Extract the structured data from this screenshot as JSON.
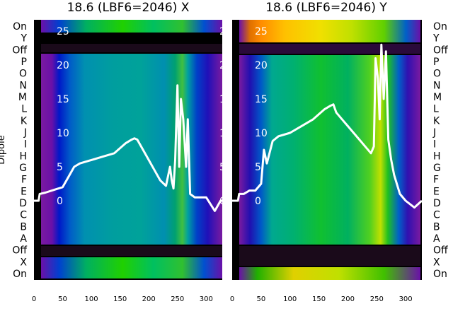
{
  "chart_data": [
    {
      "type": "heatmap",
      "title": "18.6 (LBF6=2046) X",
      "ylabel": "Dipole",
      "y_categories": [
        "On",
        "X",
        "Off",
        "A",
        "B",
        "C",
        "D",
        "E",
        "F",
        "G",
        "H",
        "I",
        "J",
        "K",
        "L",
        "M",
        "N",
        "O",
        "P",
        "Off",
        "Y",
        "On"
      ],
      "x_ticks": [
        0,
        50,
        100,
        150,
        200,
        250,
        300
      ],
      "xlim": [
        0,
        328
      ],
      "overlay_ticks": [
        0,
        5,
        10,
        15,
        20,
        25
      ],
      "overlay_ylim": [
        -3,
        27
      ],
      "overlay_trace": {
        "x": [
          0,
          8,
          10,
          20,
          35,
          50,
          60,
          70,
          80,
          100,
          120,
          140,
          160,
          170,
          175,
          180,
          190,
          200,
          210,
          220,
          230,
          237,
          240,
          243,
          246,
          250,
          253,
          256,
          260,
          265,
          268,
          272,
          280,
          290,
          300,
          315,
          325,
          328
        ],
        "y": [
          0,
          0,
          1,
          1.2,
          1.6,
          2,
          3.5,
          5,
          5.5,
          6,
          6.5,
          7,
          8.5,
          9,
          9.2,
          9,
          7.5,
          6,
          4.5,
          3,
          2.2,
          5,
          3,
          1.8,
          6,
          17,
          5,
          15,
          12,
          5,
          12,
          1,
          0.5,
          0.5,
          0.5,
          -1.5,
          0,
          0
        ]
      }
    },
    {
      "type": "heatmap",
      "title": "18.6 (LBF6=2046) Y",
      "ylabel": "",
      "y_categories": [
        "On",
        "X",
        "Off",
        "A",
        "B",
        "C",
        "D",
        "E",
        "F",
        "G",
        "H",
        "I",
        "J",
        "K",
        "L",
        "M",
        "N",
        "O",
        "P",
        "Off",
        "Y",
        "On"
      ],
      "x_ticks": [
        0,
        50,
        100,
        150,
        200,
        250,
        300
      ],
      "xlim": [
        0,
        328
      ],
      "overlay_ticks": [
        0,
        5,
        10,
        15,
        20,
        25
      ],
      "overlay_ylim": [
        -3,
        27
      ],
      "overlay_trace": {
        "x": [
          0,
          10,
          12,
          20,
          30,
          40,
          50,
          55,
          60,
          70,
          80,
          100,
          120,
          140,
          160,
          170,
          175,
          180,
          190,
          200,
          210,
          220,
          230,
          240,
          245,
          248,
          252,
          255,
          258,
          262,
          266,
          270,
          275,
          280,
          290,
          300,
          315,
          328
        ],
        "y": [
          0,
          0,
          1,
          1,
          1.5,
          1.5,
          2.5,
          7.5,
          5.5,
          8.8,
          9.5,
          10,
          11,
          12,
          13.5,
          14,
          14.2,
          13,
          12,
          11,
          10,
          9,
          8,
          7,
          8,
          21,
          18,
          12,
          23,
          15,
          22,
          9,
          6,
          3.8,
          1,
          0,
          -1,
          0
        ]
      }
    }
  ]
}
